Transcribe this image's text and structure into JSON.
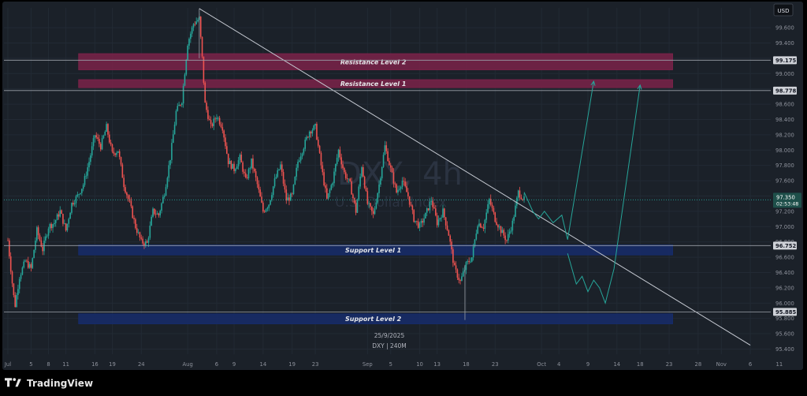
{
  "brand": "TradingView",
  "currency_button": "USD",
  "watermark": {
    "symbol": "DXY, 4h",
    "name": "U.S. Dollar Index"
  },
  "footer": {
    "date": "25/9/2025",
    "symbol_line": "DXY | 240M"
  },
  "zones": [
    {
      "label": "Resistance Level 2",
      "low": 99.05,
      "high": 99.26,
      "color": "#7a2249"
    },
    {
      "label": "Resistance Level 1",
      "low": 98.86,
      "high": 98.92,
      "color": "#7a2249"
    },
    {
      "label": "Support Level 1",
      "low": 96.63,
      "high": 96.76,
      "color": "#162c6b"
    },
    {
      "label": "Support Level 2",
      "low": 95.73,
      "high": 95.86,
      "color": "#162c6b"
    }
  ],
  "price_tags": [
    {
      "text": "99.175",
      "value": 99.175,
      "style": "line"
    },
    {
      "text": "98.778",
      "value": 98.778,
      "style": "line"
    },
    {
      "text": "96.752",
      "value": 96.752,
      "style": "line"
    },
    {
      "text": "95.885",
      "value": 95.885,
      "style": "line"
    },
    {
      "text": "97.350",
      "sub": "02:53:48",
      "value": 97.35,
      "style": "current"
    }
  ],
  "chart_data": {
    "type": "candlestick",
    "symbol": "DXY",
    "timeframe": "4h",
    "ylim": [
      95.25,
      99.9
    ],
    "y_ticks": [
      95.4,
      95.6,
      95.8,
      96.0,
      96.2,
      96.4,
      96.6,
      96.8,
      97.0,
      97.2,
      97.4,
      97.6,
      97.8,
      98.0,
      98.2,
      98.4,
      98.6,
      98.8,
      99.0,
      99.2,
      99.4,
      99.6
    ],
    "y_tick_labels": [
      "95.400",
      "95.600",
      "95.800",
      "96.000",
      "96.200",
      "96.400",
      "96.600",
      "96.800",
      "97.000",
      "97.200",
      "97.400",
      "97.600",
      "97.800",
      "98.000",
      "98.200",
      "98.400",
      "98.600",
      "98.800",
      "99.000",
      "99.200",
      "99.400",
      "99.600"
    ],
    "x_ticks": [
      {
        "label": "Jul",
        "t": 0
      },
      {
        "label": "5",
        "t": 4
      },
      {
        "label": "8",
        "t": 7
      },
      {
        "label": "11",
        "t": 10
      },
      {
        "label": "16",
        "t": 15
      },
      {
        "label": "19",
        "t": 18
      },
      {
        "label": "24",
        "t": 23
      },
      {
        "label": "Aug",
        "t": 31
      },
      {
        "label": "6",
        "t": 36
      },
      {
        "label": "9",
        "t": 39
      },
      {
        "label": "14",
        "t": 44
      },
      {
        "label": "19",
        "t": 49
      },
      {
        "label": "23",
        "t": 53
      },
      {
        "label": "Sep",
        "t": 62
      },
      {
        "label": "5",
        "t": 66
      },
      {
        "label": "10",
        "t": 71
      },
      {
        "label": "13",
        "t": 74
      },
      {
        "label": "18",
        "t": 79
      },
      {
        "label": "23",
        "t": 84
      },
      {
        "label": "Oct",
        "t": 92
      },
      {
        "label": "4",
        "t": 95
      },
      {
        "label": "9",
        "t": 100
      },
      {
        "label": "14",
        "t": 105
      },
      {
        "label": "18",
        "t": 109
      },
      {
        "label": "23",
        "t": 114
      },
      {
        "label": "28",
        "t": 119
      },
      {
        "label": "Nov",
        "t": 123
      },
      {
        "label": "6",
        "t": 128
      },
      {
        "label": "11",
        "t": 133
      }
    ],
    "price_path": [
      [
        0,
        96.82
      ],
      [
        0.7,
        96.3
      ],
      [
        1.2,
        95.95
      ],
      [
        2,
        96.35
      ],
      [
        3,
        96.55
      ],
      [
        4,
        96.45
      ],
      [
        5,
        96.95
      ],
      [
        6,
        96.7
      ],
      [
        7,
        97.0
      ],
      [
        8,
        97.05
      ],
      [
        9,
        97.2
      ],
      [
        10,
        96.95
      ],
      [
        11,
        97.3
      ],
      [
        12,
        97.4
      ],
      [
        13,
        97.55
      ],
      [
        14,
        97.85
      ],
      [
        15,
        98.2
      ],
      [
        16,
        98.05
      ],
      [
        17,
        98.3
      ],
      [
        18,
        97.95
      ],
      [
        19,
        98.0
      ],
      [
        20,
        97.55
      ],
      [
        21,
        97.3
      ],
      [
        22,
        97.0
      ],
      [
        23,
        96.8
      ],
      [
        24,
        96.78
      ],
      [
        25,
        97.2
      ],
      [
        26,
        97.15
      ],
      [
        27,
        97.45
      ],
      [
        28,
        97.9
      ],
      [
        29,
        98.5
      ],
      [
        30,
        98.65
      ],
      [
        31,
        99.4
      ],
      [
        32,
        99.65
      ],
      [
        33,
        99.72
      ],
      [
        33.5,
        99.2
      ],
      [
        34,
        98.6
      ],
      [
        35,
        98.3
      ],
      [
        36,
        98.45
      ],
      [
        37,
        98.3
      ],
      [
        38,
        97.85
      ],
      [
        39,
        97.75
      ],
      [
        40,
        97.9
      ],
      [
        41,
        97.6
      ],
      [
        42,
        97.85
      ],
      [
        43,
        97.55
      ],
      [
        44,
        97.2
      ],
      [
        45,
        97.3
      ],
      [
        46,
        97.6
      ],
      [
        47,
        97.8
      ],
      [
        48,
        97.35
      ],
      [
        49,
        97.4
      ],
      [
        50,
        97.85
      ],
      [
        51,
        98.05
      ],
      [
        52,
        98.25
      ],
      [
        53,
        98.3
      ],
      [
        54,
        97.8
      ],
      [
        55,
        97.35
      ],
      [
        56,
        97.6
      ],
      [
        57,
        98.0
      ],
      [
        58,
        97.7
      ],
      [
        59,
        97.55
      ],
      [
        60,
        97.2
      ],
      [
        61,
        97.8
      ],
      [
        62,
        97.3
      ],
      [
        63,
        97.15
      ],
      [
        64,
        97.55
      ],
      [
        65,
        98.05
      ],
      [
        66,
        97.75
      ],
      [
        67,
        97.45
      ],
      [
        68,
        97.6
      ],
      [
        69,
        97.4
      ],
      [
        70,
        97.1
      ],
      [
        71,
        97.0
      ],
      [
        72,
        97.15
      ],
      [
        73,
        97.35
      ],
      [
        74,
        97.05
      ],
      [
        75,
        97.2
      ],
      [
        76,
        96.9
      ],
      [
        77,
        96.45
      ],
      [
        78,
        96.28
      ],
      [
        79,
        96.5
      ],
      [
        80,
        96.6
      ],
      [
        81,
        97.05
      ],
      [
        82,
        97.0
      ],
      [
        83,
        97.35
      ],
      [
        84,
        97.1
      ],
      [
        85,
        96.95
      ],
      [
        86,
        96.82
      ],
      [
        87,
        97.05
      ],
      [
        88,
        97.45
      ],
      [
        89,
        97.35
      ]
    ],
    "trendline": {
      "from": [
        33,
        99.85
      ],
      "to": [
        128,
        95.45
      ]
    },
    "projections": [
      {
        "points": [
          [
            89,
            97.45
          ],
          [
            90.5,
            97.2
          ],
          [
            91.5,
            97.1
          ],
          [
            92.5,
            97.2
          ],
          [
            94,
            97.05
          ],
          [
            95.5,
            97.15
          ],
          [
            96.5,
            96.83
          ],
          [
            101,
            98.9
          ]
        ]
      },
      {
        "points": [
          [
            96.5,
            96.65
          ],
          [
            98,
            96.25
          ],
          [
            99,
            96.35
          ],
          [
            100,
            96.15
          ],
          [
            101,
            96.3
          ],
          [
            102,
            96.2
          ],
          [
            103,
            96.0
          ],
          [
            104.5,
            96.45
          ],
          [
            109,
            98.85
          ]
        ]
      }
    ],
    "colors": {
      "up": "#26a69a",
      "down": "#ef5350",
      "projection": "#26a69a",
      "trendline": "#c8ccd4"
    }
  }
}
